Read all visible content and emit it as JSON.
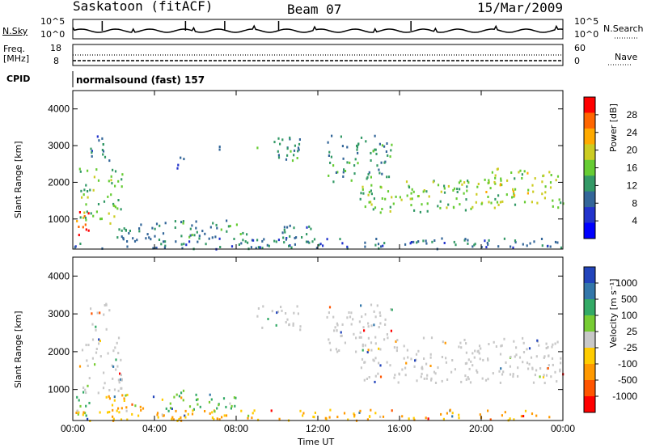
{
  "header": {
    "station": "Saskatoon (fitACF)",
    "beam": "Beam 07",
    "date": "15/Mar/2009"
  },
  "noise_panel": {
    "left_label": "N.Sky",
    "right_label": "N.Search",
    "left_ticks": [
      "10^5",
      "10^0"
    ],
    "right_ticks": [
      "10^5",
      "10^0"
    ]
  },
  "freq_panel": {
    "left_label_1": "Freq.",
    "left_label_2": "[MHz]",
    "right_label": "Nave",
    "left_ticks": [
      "18",
      "8"
    ],
    "right_ticks": [
      "60",
      "0"
    ]
  },
  "cpid": {
    "label": "CPID",
    "text": "normalsound (fast) 157"
  },
  "chart_data": [
    {
      "type": "heatmap",
      "name": "power",
      "ylabel": "Slant Range [km]",
      "xlabel": "Time UT",
      "x_ticks": [
        "00:00",
        "04:00",
        "08:00",
        "12:00",
        "16:00",
        "20:00",
        "00:00"
      ],
      "y_ticks": [
        "1000",
        "2000",
        "3000",
        "4000"
      ],
      "ylim": [
        180,
        4500
      ],
      "colorbar_label": "Power [dB]",
      "colorbar_ticks": [
        "28",
        "24",
        "20",
        "16",
        "12",
        "8",
        "4"
      ],
      "colorbar_colors": [
        "#ff0000",
        "#ff6600",
        "#ffaa00",
        "#cccc22",
        "#66cc33",
        "#339966",
        "#336699",
        "#2233cc",
        "#0000ff"
      ],
      "regions": [
        {
          "t0": 0.0,
          "t1": 0.8,
          "r0": 300,
          "r1": 1300,
          "level": 26
        },
        {
          "t0": 0.3,
          "t1": 2.4,
          "r0": 900,
          "r1": 2400,
          "level": 14
        },
        {
          "t0": 0.8,
          "t1": 1.8,
          "r0": 2600,
          "r1": 3300,
          "level": 8
        },
        {
          "t0": 1.5,
          "t1": 4.5,
          "r0": 400,
          "r1": 900,
          "level": 8
        },
        {
          "t0": 4.5,
          "t1": 8.5,
          "r0": 500,
          "r1": 1000,
          "level": 10
        },
        {
          "t0": 4.8,
          "t1": 5.4,
          "r0": 2400,
          "r1": 2800,
          "level": 6
        },
        {
          "t0": 6.8,
          "t1": 7.4,
          "r0": 2800,
          "r1": 3200,
          "level": 6
        },
        {
          "t0": 9.0,
          "t1": 11.2,
          "r0": 2600,
          "r1": 3300,
          "level": 10
        },
        {
          "t0": 10.0,
          "t1": 12.0,
          "r0": 300,
          "r1": 900,
          "level": 8
        },
        {
          "t0": 12.4,
          "t1": 15.6,
          "r0": 2000,
          "r1": 3300,
          "level": 10
        },
        {
          "t0": 14.0,
          "t1": 19.6,
          "r0": 1200,
          "r1": 2100,
          "level": 14
        },
        {
          "t0": 19.6,
          "t1": 24.0,
          "r0": 1300,
          "r1": 2400,
          "level": 16
        },
        {
          "t0": 0.0,
          "t1": 24.0,
          "r0": 200,
          "r1": 500,
          "level": 8
        }
      ]
    },
    {
      "type": "heatmap",
      "name": "velocity",
      "ylabel": "Slant Range [km]",
      "xlabel": "Time UT",
      "x_ticks": [
        "00:00",
        "04:00",
        "08:00",
        "12:00",
        "16:00",
        "20:00",
        "00:00"
      ],
      "y_ticks": [
        "1000",
        "2000",
        "3000",
        "4000"
      ],
      "ylim": [
        180,
        4500
      ],
      "colorbar_label": "Velocity [m s⁻¹]",
      "colorbar_ticks": [
        "1000",
        "500",
        "100",
        "25",
        "-25",
        "-100",
        "-500",
        "-1000"
      ],
      "colorbar_colors": [
        "#2244bb",
        "#3377aa",
        "#33aa66",
        "#77cc33",
        "#c8c8c8",
        "#ffcc00",
        "#ff9900",
        "#ff5500",
        "#ff0000"
      ],
      "regions": [
        {
          "t0": 0.0,
          "t1": 0.8,
          "r0": 300,
          "r1": 1300,
          "level": 100
        },
        {
          "t0": 0.3,
          "t1": 2.4,
          "r0": 900,
          "r1": 2400,
          "level": 0
        },
        {
          "t0": 0.8,
          "t1": 1.8,
          "r0": 2600,
          "r1": 3300,
          "level": 0
        },
        {
          "t0": 1.5,
          "t1": 4.5,
          "r0": 400,
          "r1": 900,
          "level": -100
        },
        {
          "t0": 4.5,
          "t1": 8.5,
          "r0": 500,
          "r1": 1000,
          "level": 100
        },
        {
          "t0": 9.0,
          "t1": 11.2,
          "r0": 2600,
          "r1": 3300,
          "level": 0
        },
        {
          "t0": 12.4,
          "t1": 15.6,
          "r0": 2000,
          "r1": 3300,
          "level": 0
        },
        {
          "t0": 14.0,
          "t1": 24.0,
          "r0": 1200,
          "r1": 2400,
          "level": 0
        },
        {
          "t0": 0.0,
          "t1": 24.0,
          "r0": 200,
          "r1": 500,
          "level": -100
        }
      ]
    }
  ]
}
